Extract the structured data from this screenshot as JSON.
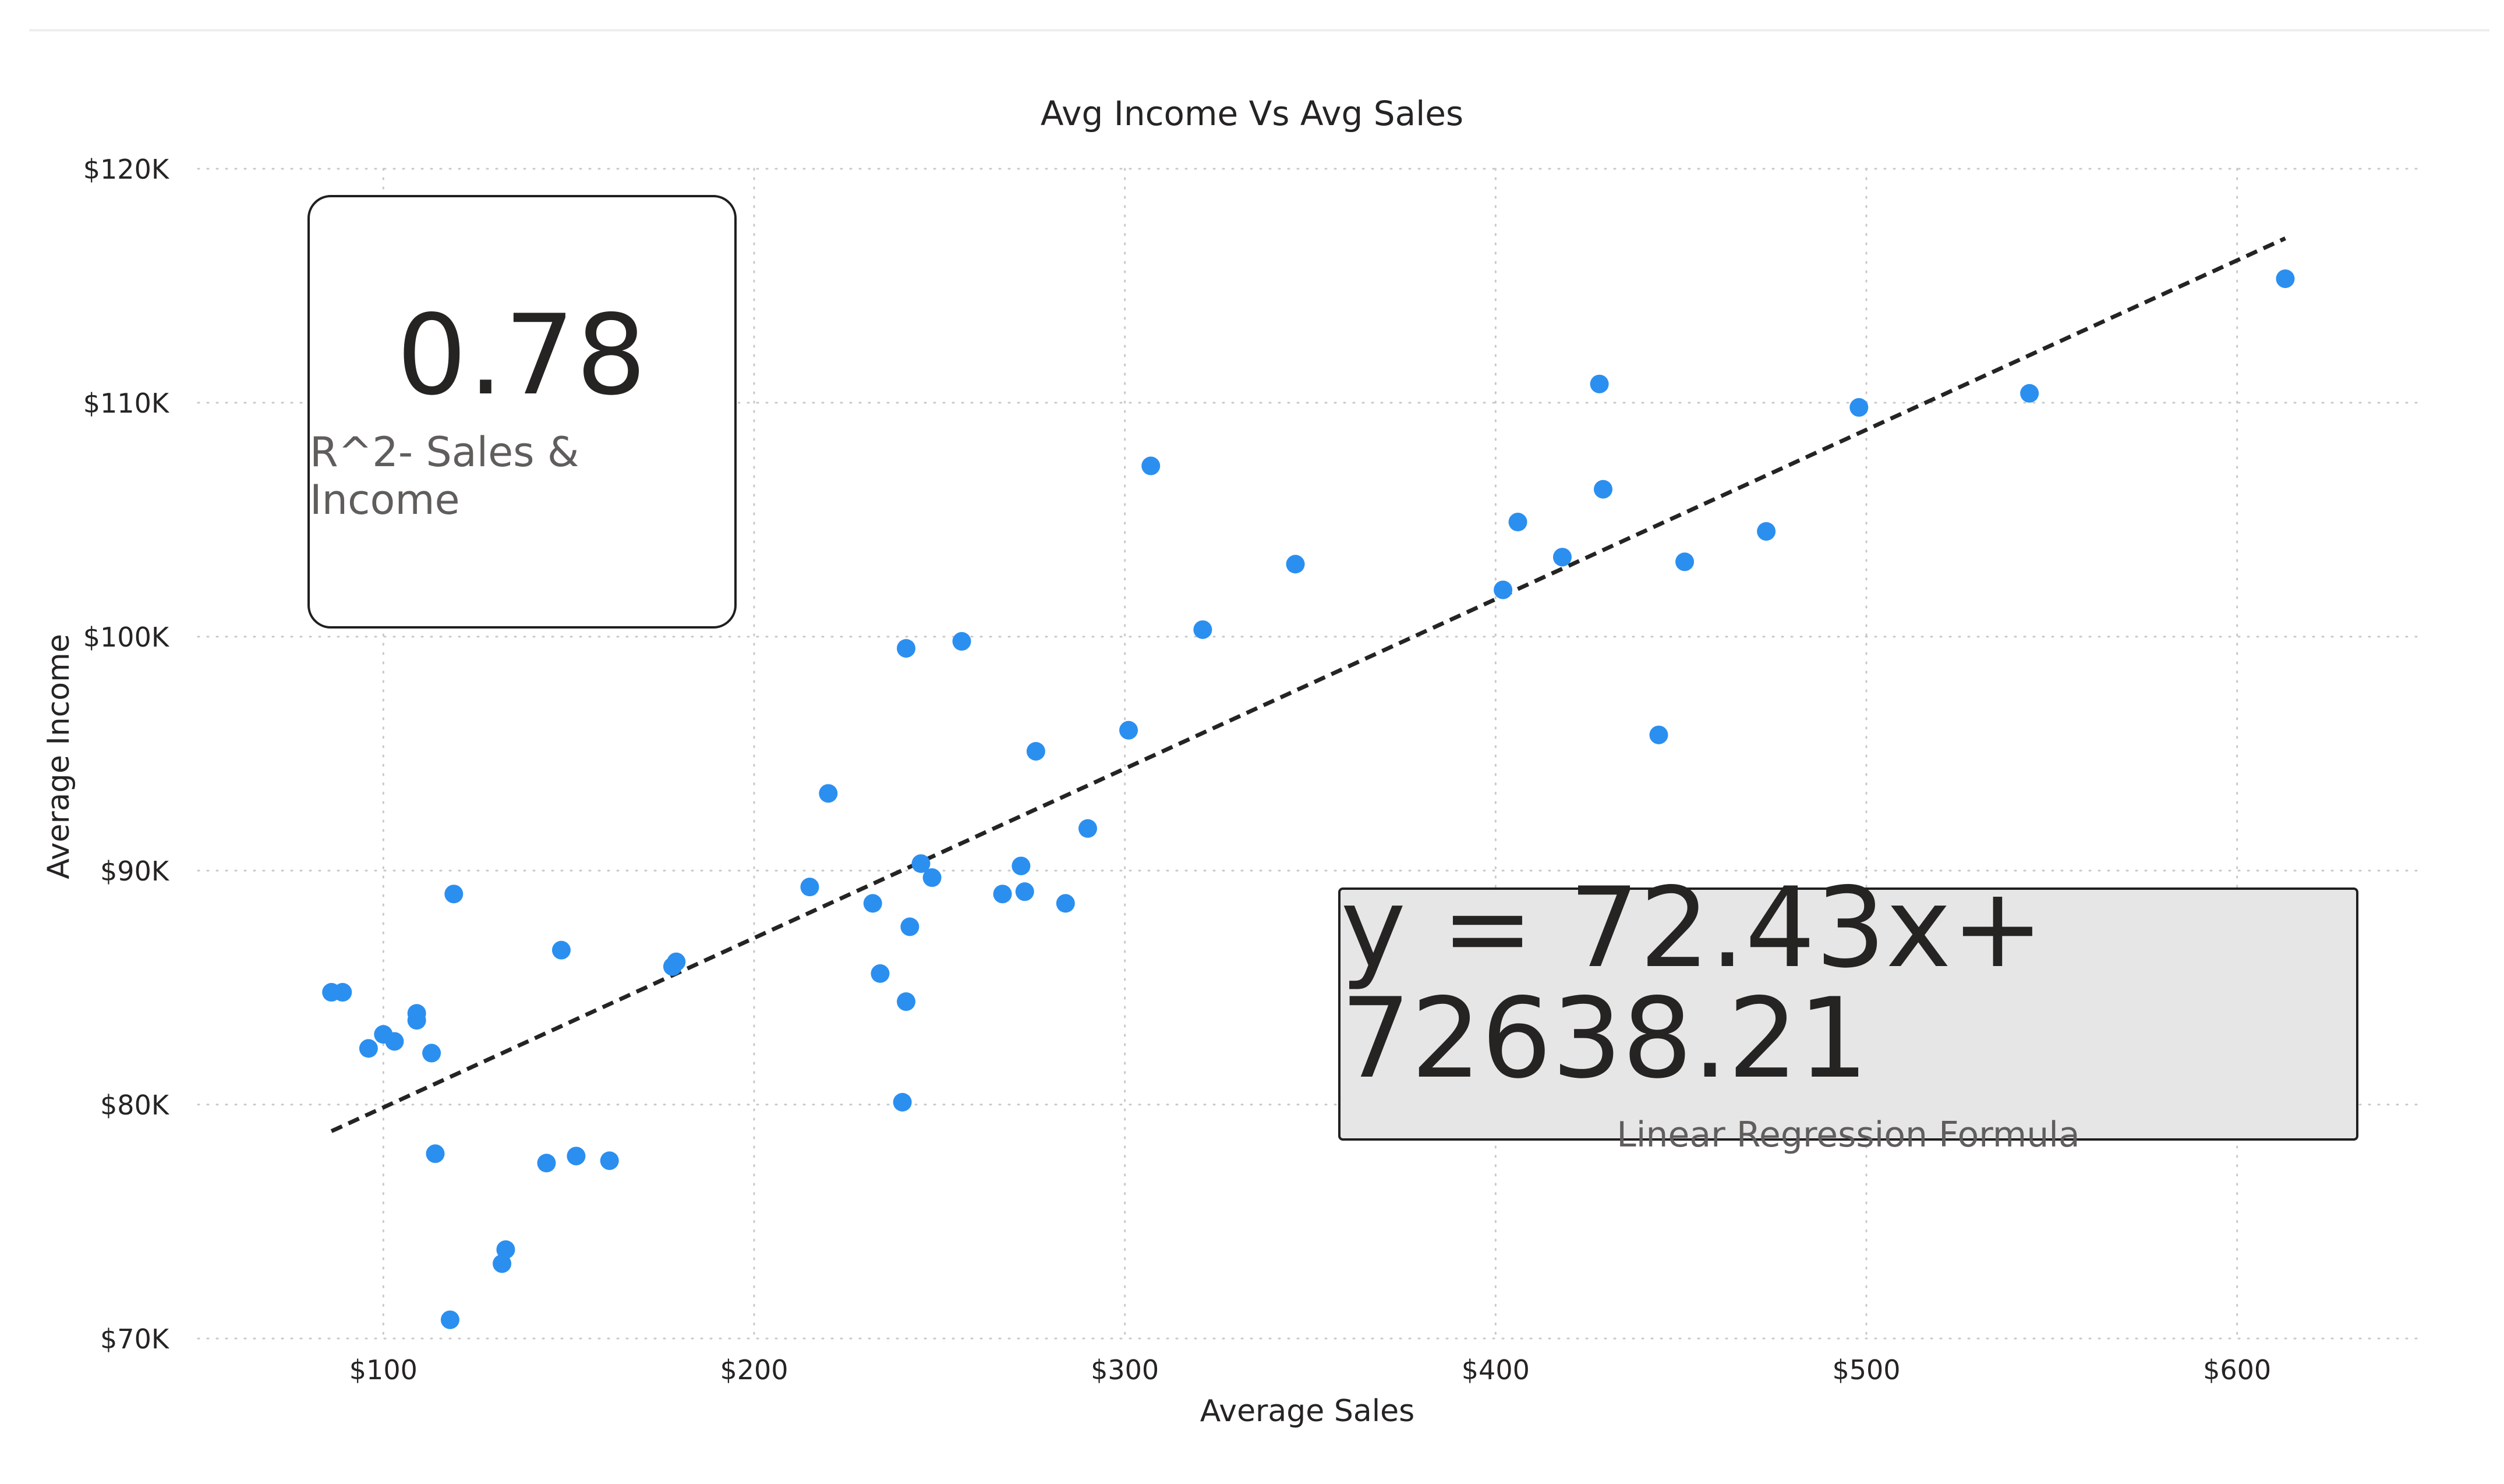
{
  "chart_data": {
    "type": "scatter",
    "title": "Avg Income Vs Avg Sales",
    "xlabel": "Average Sales",
    "ylabel": "Average Income",
    "xlim": [
      50,
      650
    ],
    "ylim": [
      70000,
      120000
    ],
    "x_ticks": [
      {
        "value": 100,
        "label": "$100"
      },
      {
        "value": 200,
        "label": "$200"
      },
      {
        "value": 300,
        "label": "$300"
      },
      {
        "value": 400,
        "label": "$400"
      },
      {
        "value": 500,
        "label": "$500"
      },
      {
        "value": 600,
        "label": "$600"
      }
    ],
    "y_ticks": [
      {
        "value": 70000,
        "label": "$70K"
      },
      {
        "value": 80000,
        "label": "$80K"
      },
      {
        "value": 90000,
        "label": "$90K"
      },
      {
        "value": 100000,
        "label": "$100K"
      },
      {
        "value": 110000,
        "label": "$110K"
      },
      {
        "value": 120000,
        "label": "$120K"
      }
    ],
    "grid": true,
    "point_color": "#2b8ff0",
    "trendline": {
      "style": "dashed",
      "color": "#252423",
      "x_start": 86,
      "x_end": 613
    },
    "points": [
      [
        86,
        84800
      ],
      [
        89,
        84800
      ],
      [
        96,
        82400
      ],
      [
        100,
        83000
      ],
      [
        103,
        82700
      ],
      [
        109,
        83600
      ],
      [
        109,
        83900
      ],
      [
        113,
        82200
      ],
      [
        114,
        77900
      ],
      [
        118,
        70800
      ],
      [
        119,
        89000
      ],
      [
        132,
        73200
      ],
      [
        133,
        73800
      ],
      [
        144,
        77500
      ],
      [
        148,
        86600
      ],
      [
        152,
        77800
      ],
      [
        161,
        77600
      ],
      [
        178,
        85900
      ],
      [
        179,
        86100
      ],
      [
        215,
        89300
      ],
      [
        220,
        93300
      ],
      [
        232,
        88600
      ],
      [
        234,
        85600
      ],
      [
        240,
        80100
      ],
      [
        241,
        84400
      ],
      [
        241,
        99500
      ],
      [
        242,
        87600
      ],
      [
        245,
        90300
      ],
      [
        248,
        89700
      ],
      [
        256,
        99800
      ],
      [
        267,
        89000
      ],
      [
        272,
        90200
      ],
      [
        273,
        89100
      ],
      [
        276,
        95100
      ],
      [
        284,
        88600
      ],
      [
        290,
        91800
      ],
      [
        301,
        96000
      ],
      [
        307,
        107300
      ],
      [
        321,
        100300
      ],
      [
        346,
        103100
      ],
      [
        402,
        102000
      ],
      [
        406,
        104900
      ],
      [
        418,
        103400
      ],
      [
        428,
        110800
      ],
      [
        429,
        106300
      ],
      [
        444,
        95800
      ],
      [
        451,
        103200
      ],
      [
        473,
        104500
      ],
      [
        498,
        109800
      ],
      [
        544,
        110400
      ],
      [
        613,
        115300
      ]
    ]
  },
  "r2_card": {
    "value": "0.78",
    "label": "R^2- Sales & Income"
  },
  "equation_card": {
    "value": "y = 72.43x+ 72638.21",
    "label": "Linear Regression Formula"
  }
}
